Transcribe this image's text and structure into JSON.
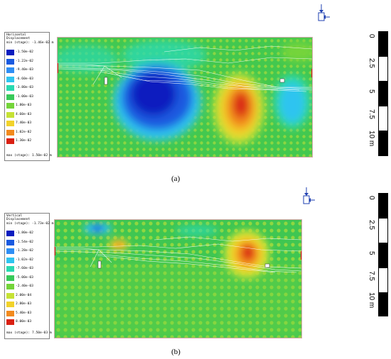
{
  "panel_a": {
    "legend_title": "Horizontal\nDisplacement",
    "min_line": "min (stage): -1.46e-02 m",
    "max_line": "max (stage): 1.50e-02 m",
    "levels": [
      "-1.50e-02",
      "-1.22e-02",
      "-9.40e-03",
      "-6.60e-03",
      "-3.80e-03",
      "-1.00e-03",
      "1.80e-03",
      "4.60e-03",
      "7.40e-03",
      "1.02e-02",
      "1.30e-02"
    ],
    "level_colors": [
      "#0a1dbf",
      "#1a5ae0",
      "#2e8ef5",
      "#2fc4f0",
      "#29d9b0",
      "#38c95a",
      "#74d43a",
      "#c6e235",
      "#f2d22a",
      "#f28a1e",
      "#d92012"
    ],
    "caption": "(a)",
    "scale_ticks": [
      "0",
      "2.5",
      "5",
      "7.5",
      "10 m"
    ],
    "icon": "load-arrow-icon"
  },
  "panel_b": {
    "legend_title": "Vertical\nDisplacement",
    "min_line": "min (stage): -1.73e-02 m",
    "max_line": "max (stage): 7.50e-03 m",
    "levels": [
      "-1.80e-02",
      "-1.54e-02",
      "-1.28e-02",
      "-1.02e-02",
      "-7.60e-03",
      "-5.00e-03",
      "-2.40e-03",
      "2.00e-04",
      "2.80e-03",
      "5.40e-03",
      "8.00e-03"
    ],
    "level_colors": [
      "#0a1dbf",
      "#1a5ae0",
      "#2e8ef5",
      "#2fc4f0",
      "#29d9b0",
      "#38c95a",
      "#74d43a",
      "#c6e235",
      "#f2d22a",
      "#f28a1e",
      "#d92012"
    ],
    "caption": "(b)",
    "scale_ticks": [
      "0",
      "2.5",
      "5",
      "7.5",
      "10 m"
    ],
    "icon": "load-arrow-icon"
  }
}
